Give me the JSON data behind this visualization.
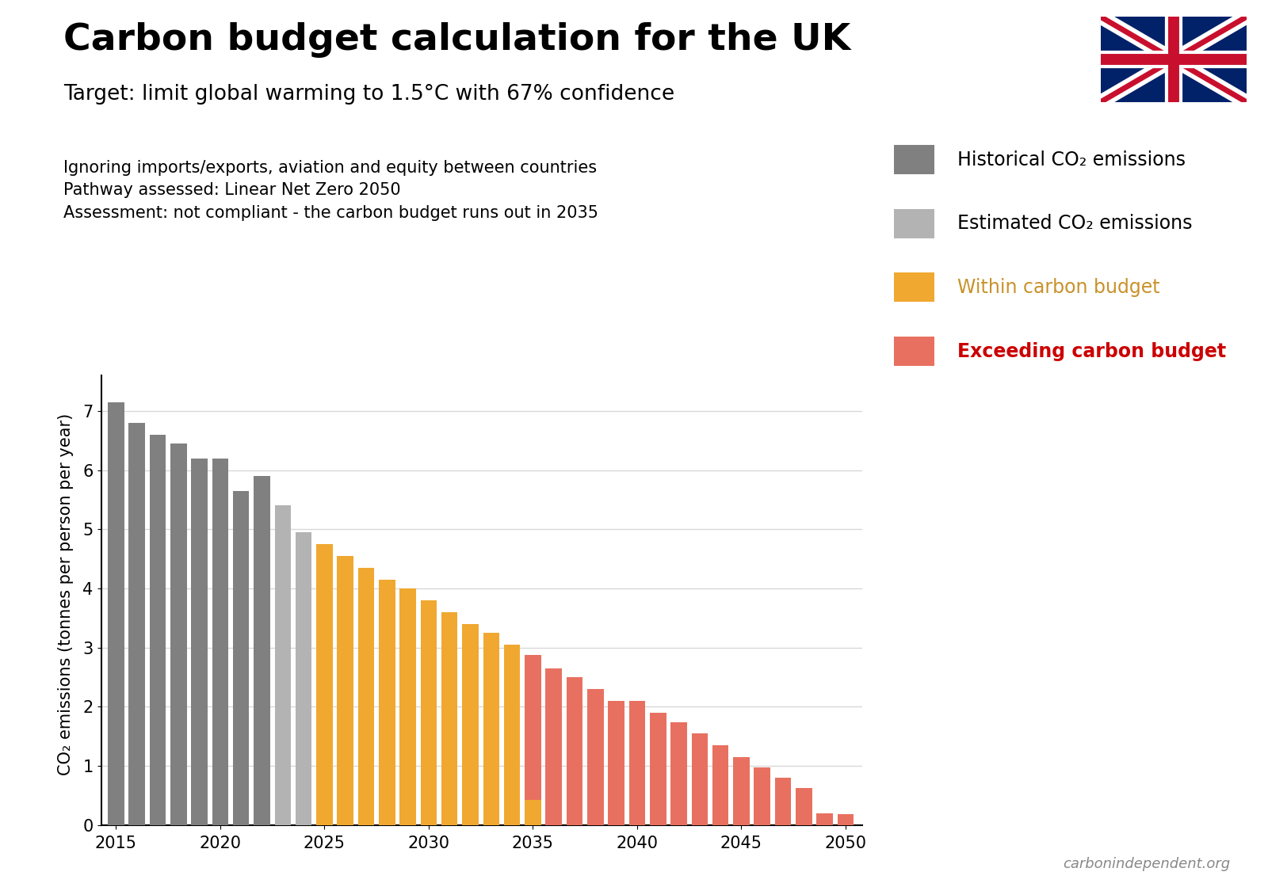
{
  "title": "Carbon budget calculation for the UK",
  "subtitle": "Target: limit global warming to 1.5°C with 67% confidence",
  "info_lines": [
    "Ignoring imports/exports, aviation and equity between countries",
    "Pathway assessed: Linear Net Zero 2050",
    "Assessment: not compliant - the carbon budget runs out in 2035"
  ],
  "years": [
    2015,
    2016,
    2017,
    2018,
    2019,
    2020,
    2021,
    2022,
    2023,
    2024,
    2025,
    2026,
    2027,
    2028,
    2029,
    2030,
    2031,
    2032,
    2033,
    2034,
    2035,
    2036,
    2037,
    2038,
    2039,
    2040,
    2041,
    2042,
    2043,
    2044,
    2045,
    2046,
    2047,
    2048,
    2049,
    2050
  ],
  "values": [
    7.15,
    6.8,
    6.6,
    6.45,
    6.2,
    6.2,
    5.65,
    5.9,
    5.4,
    4.95,
    4.75,
    4.55,
    4.35,
    4.15,
    4.0,
    3.8,
    3.6,
    3.4,
    3.25,
    3.05,
    2.88,
    2.65,
    2.5,
    2.3,
    2.1,
    2.1,
    1.9,
    1.73,
    1.55,
    1.35,
    1.15,
    0.97,
    0.8,
    0.62,
    0.2,
    0.18
  ],
  "budget_exhausted_year": 2035,
  "budget_remaining_2035": 0.42,
  "categories": {
    "historical": [
      2015,
      2016,
      2017,
      2018,
      2019,
      2020,
      2021,
      2022
    ],
    "estimated": [
      2023,
      2024
    ],
    "within_budget": [
      2025,
      2026,
      2027,
      2028,
      2029,
      2030,
      2031,
      2032,
      2033,
      2034
    ],
    "exceeding": [
      2036,
      2037,
      2038,
      2039,
      2040,
      2041,
      2042,
      2043,
      2044,
      2045,
      2046,
      2047,
      2048,
      2049,
      2050
    ]
  },
  "colors": {
    "historical": "#808080",
    "estimated": "#b3b3b3",
    "within_budget": "#f0a830",
    "exceeding": "#e87060",
    "within_budget_text": "#c8922a",
    "exceeding_text": "#cc0000",
    "background": "#ffffff",
    "grid": "#d8d8d8"
  },
  "legend_labels": {
    "historical": "Historical CO₂ emissions",
    "estimated": "Estimated CO₂ emissions",
    "within_budget": "Within carbon budget",
    "exceeding": "Exceeding carbon budget"
  },
  "ylabel": "CO₂ emissions (tonnes per person per year)",
  "ylim": [
    0,
    7.8
  ],
  "yticks": [
    0,
    1,
    2,
    3,
    4,
    5,
    6,
    7
  ],
  "xticks": [
    2015,
    2020,
    2025,
    2030,
    2035,
    2040,
    2045,
    2050
  ],
  "watermark": "carbonindependent.org",
  "title_fontsize": 34,
  "subtitle_fontsize": 19,
  "info_fontsize": 15,
  "legend_fontsize": 17,
  "ylabel_fontsize": 15,
  "tick_fontsize": 15
}
